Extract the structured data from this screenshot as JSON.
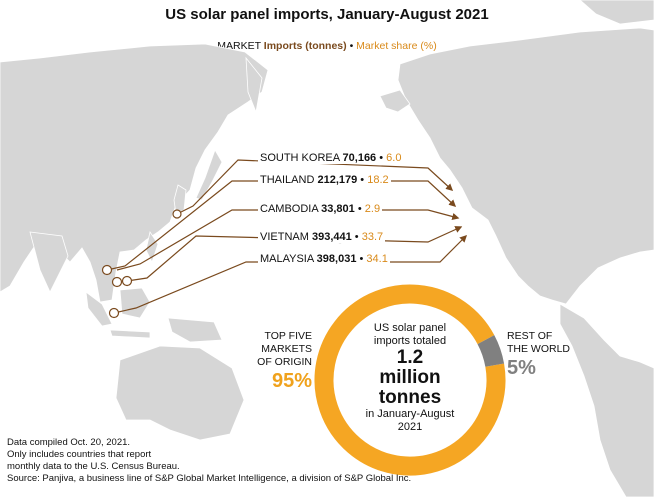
{
  "title": "US solar panel imports, January-August 2021",
  "legend": {
    "market": "MARKET",
    "imports": "Imports (tonnes)",
    "bullet": "•",
    "share": "Market share (%)"
  },
  "colors": {
    "imports": "#7a4a1e",
    "share": "#d98a1a",
    "donut_top5": "#f5a623",
    "donut_rest": "#808080",
    "land": "#d6d6d6",
    "arrow": "#7a4a1e"
  },
  "countries": [
    {
      "name": "SOUTH KOREA",
      "imports": "70,166",
      "share": "6.0"
    },
    {
      "name": "THAILAND",
      "imports": "212,179",
      "share": "18.2"
    },
    {
      "name": "CAMBODIA",
      "imports": "33,801",
      "share": "2.9"
    },
    {
      "name": "VIETNAM",
      "imports": "393,441",
      "share": "33.7"
    },
    {
      "name": "MALAYSIA",
      "imports": "398,031",
      "share": "34.1"
    }
  ],
  "donut": {
    "line1": "US solar panel",
    "line2": "imports totaled",
    "big1": "1.2",
    "big2": "million",
    "big3": "tonnes",
    "line3": "in January-August",
    "line4": "2021",
    "top5_share": 95,
    "rest_share": 5
  },
  "top5": {
    "l1": "TOP FIVE",
    "l2": "MARKETS",
    "l3": "OF ORIGIN",
    "pct": "95%"
  },
  "rest": {
    "l1": "REST OF",
    "l2": "THE WORLD",
    "pct": "5%"
  },
  "notes": [
    "Data compiled Oct. 20, 2021.",
    "Only includes countries that report",
    "monthly data to the U.S. Census Bureau.",
    "Source: Panjiva, a business line of S&P Global Market Intelligence, a division of S&P Global Inc."
  ]
}
